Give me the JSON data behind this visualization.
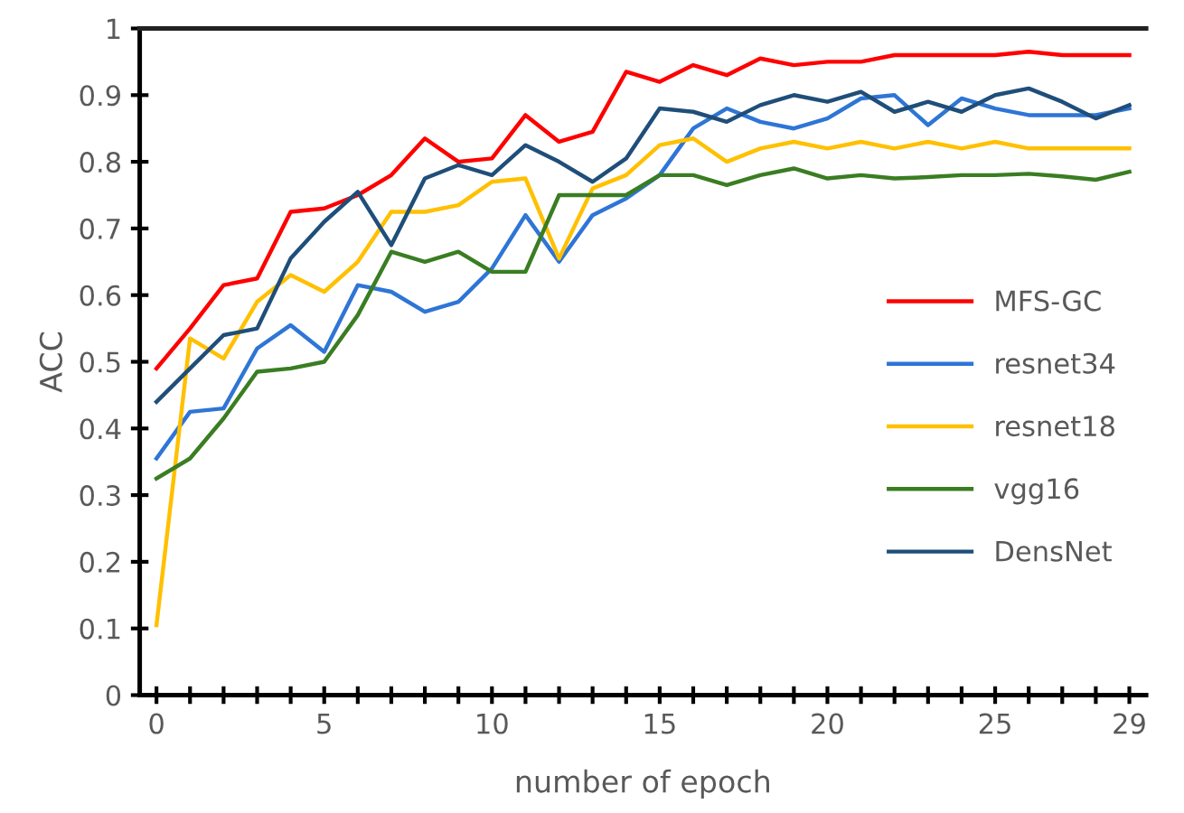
{
  "chart_data": {
    "type": "line",
    "xlabel": "number of epoch",
    "ylabel": "ACC",
    "x": [
      0,
      1,
      2,
      3,
      4,
      5,
      6,
      7,
      8,
      9,
      10,
      11,
      12,
      13,
      14,
      15,
      16,
      17,
      18,
      19,
      20,
      21,
      22,
      23,
      24,
      25,
      26,
      27,
      28,
      29
    ],
    "xlim": [
      -0.5,
      29.5
    ],
    "xticks": [
      0,
      5,
      10,
      15,
      20,
      25,
      29
    ],
    "ylim": [
      0,
      1
    ],
    "yticks": [
      0,
      0.1,
      0.2,
      0.3,
      0.4,
      0.5,
      0.6,
      0.7,
      0.8,
      0.9,
      1
    ],
    "grid": false,
    "legend": "right",
    "marker": "none",
    "line_style": "solid",
    "series": [
      {
        "name": "MFS-GC",
        "color": "#ff0000",
        "values": [
          0.49,
          0.55,
          0.615,
          0.625,
          0.725,
          0.73,
          0.75,
          0.78,
          0.835,
          0.8,
          0.805,
          0.87,
          0.83,
          0.845,
          0.935,
          0.92,
          0.945,
          0.93,
          0.955,
          0.945,
          0.95,
          0.95,
          0.96,
          0.96,
          0.96,
          0.96,
          0.965,
          0.96,
          0.96,
          0.96
        ]
      },
      {
        "name": "resnet34",
        "color": "#2e75d6",
        "values": [
          0.355,
          0.425,
          0.43,
          0.52,
          0.555,
          0.515,
          0.615,
          0.605,
          0.575,
          0.59,
          0.64,
          0.72,
          0.65,
          0.72,
          0.745,
          0.78,
          0.85,
          0.88,
          0.86,
          0.85,
          0.865,
          0.895,
          0.9,
          0.855,
          0.895,
          0.88,
          0.87,
          0.87,
          0.87,
          0.88
        ]
      },
      {
        "name": "resnet18",
        "color": "#ffc000",
        "values": [
          0.105,
          0.535,
          0.505,
          0.59,
          0.63,
          0.605,
          0.65,
          0.725,
          0.725,
          0.735,
          0.77,
          0.775,
          0.655,
          0.76,
          0.78,
          0.825,
          0.835,
          0.8,
          0.82,
          0.83,
          0.82,
          0.83,
          0.82,
          0.83,
          0.82,
          0.83,
          0.82,
          0.82,
          0.82,
          0.82
        ]
      },
      {
        "name": "vgg16",
        "color": "#3a7d22",
        "values": [
          0.325,
          0.355,
          0.415,
          0.485,
          0.49,
          0.5,
          0.57,
          0.665,
          0.65,
          0.665,
          0.635,
          0.635,
          0.75,
          0.75,
          0.75,
          0.78,
          0.78,
          0.765,
          0.78,
          0.79,
          0.775,
          0.78,
          0.775,
          0.777,
          0.78,
          0.78,
          0.782,
          0.778,
          0.773,
          0.785
        ]
      },
      {
        "name": "DensNet",
        "color": "#1f4e79",
        "values": [
          0.44,
          0.49,
          0.54,
          0.55,
          0.655,
          0.71,
          0.755,
          0.675,
          0.775,
          0.795,
          0.78,
          0.825,
          0.8,
          0.77,
          0.805,
          0.88,
          0.875,
          0.86,
          0.885,
          0.9,
          0.89,
          0.905,
          0.875,
          0.89,
          0.875,
          0.9,
          0.91,
          0.89,
          0.865,
          0.885
        ]
      }
    ]
  }
}
